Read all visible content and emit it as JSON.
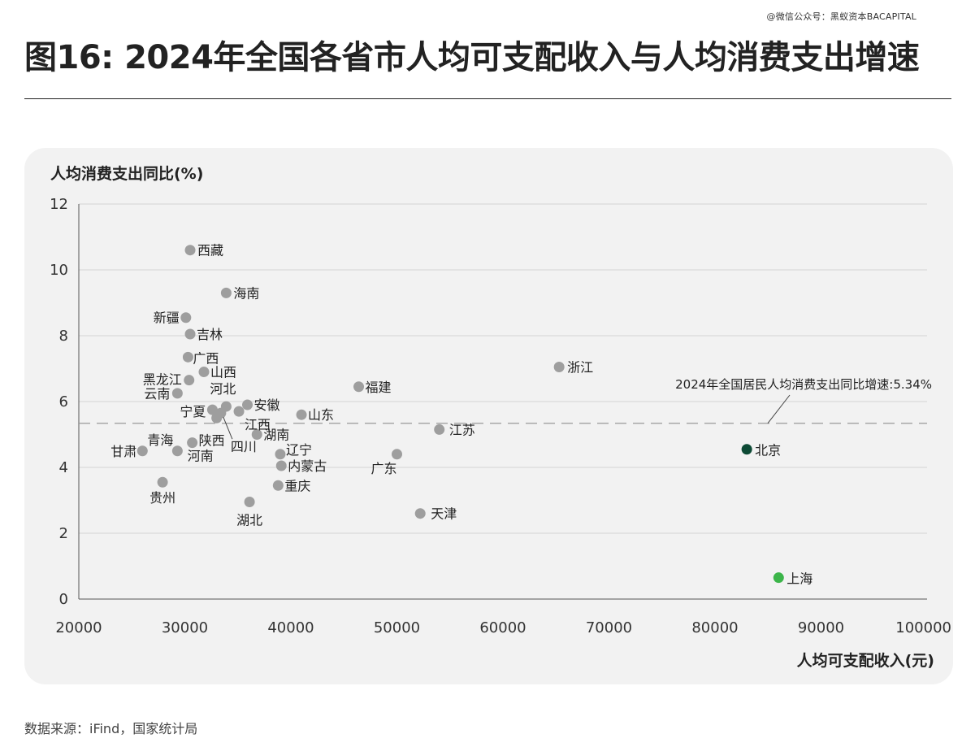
{
  "watermark": "@微信公众号：黑蚁资本BACAPITAL",
  "title": "图16: 2024年全国各省市人均可支配收入与人均消费支出增速",
  "source": "数据来源：iFind，国家统计局",
  "colors": {
    "default_point": "#9e9e9e",
    "beijing": "#0d4a35",
    "shanghai": "#3cb54a",
    "grid": "#d4d4d4",
    "axis": "#555555",
    "ref_line": "#999999"
  },
  "chart_data": {
    "type": "scatter",
    "title": "",
    "xlabel": "人均可支配收入(元)",
    "ylabel": "人均消费支出同比(%)",
    "xlim": [
      20000,
      100000
    ],
    "ylim": [
      0,
      12
    ],
    "xticks": [
      20000,
      30000,
      40000,
      50000,
      60000,
      70000,
      80000,
      90000,
      100000
    ],
    "yticks": [
      0,
      2,
      4,
      6,
      8,
      10,
      12
    ],
    "grid": "horizontal",
    "reference_line": {
      "y": 5.34,
      "label": "2024年全国居民人均消费支出同比增速:5.34%"
    },
    "points": [
      {
        "name": "西藏",
        "x": 30500,
        "y": 10.6,
        "color": "default"
      },
      {
        "name": "海南",
        "x": 33900,
        "y": 9.3,
        "color": "default"
      },
      {
        "name": "新疆",
        "x": 30100,
        "y": 8.55,
        "color": "default"
      },
      {
        "name": "吉林",
        "x": 30500,
        "y": 8.05,
        "color": "default"
      },
      {
        "name": "广西",
        "x": 30300,
        "y": 7.35,
        "color": "default"
      },
      {
        "name": "山西",
        "x": 31800,
        "y": 6.9,
        "color": "default"
      },
      {
        "name": "黑龙江",
        "x": 30400,
        "y": 6.65,
        "color": "default"
      },
      {
        "name": "云南",
        "x": 29300,
        "y": 6.25,
        "color": "default"
      },
      {
        "name": "河北",
        "x": 33900,
        "y": 5.85,
        "color": "default"
      },
      {
        "name": "安徽",
        "x": 35900,
        "y": 5.9,
        "color": "default"
      },
      {
        "name": "宁夏",
        "x": 32600,
        "y": 5.75,
        "color": "default"
      },
      {
        "name": "江西",
        "x": 35100,
        "y": 5.7,
        "color": "default"
      },
      {
        "name": "四川",
        "x": 33400,
        "y": 5.65,
        "color": "default"
      },
      {
        "name": "陕西",
        "x": 33000,
        "y": 5.5,
        "color": "default"
      },
      {
        "name": "山东",
        "x": 41000,
        "y": 5.6,
        "color": "default"
      },
      {
        "name": "湖南",
        "x": 36800,
        "y": 5.0,
        "color": "default"
      },
      {
        "name": "河南",
        "x": 30700,
        "y": 4.75,
        "color": "default"
      },
      {
        "name": "青海",
        "x": 29300,
        "y": 4.5,
        "color": "default"
      },
      {
        "name": "甘肃",
        "x": 26000,
        "y": 4.5,
        "color": "default"
      },
      {
        "name": "辽宁",
        "x": 39000,
        "y": 4.4,
        "color": "default"
      },
      {
        "name": "内蒙古",
        "x": 39100,
        "y": 4.05,
        "color": "default"
      },
      {
        "name": "贵州",
        "x": 27900,
        "y": 3.55,
        "color": "default"
      },
      {
        "name": "重庆",
        "x": 38800,
        "y": 3.45,
        "color": "default"
      },
      {
        "name": "湖北",
        "x": 36100,
        "y": 2.95,
        "color": "default"
      },
      {
        "name": "福建",
        "x": 46400,
        "y": 6.45,
        "color": "default"
      },
      {
        "name": "浙江",
        "x": 65300,
        "y": 7.05,
        "color": "default"
      },
      {
        "name": "江苏",
        "x": 54000,
        "y": 5.15,
        "color": "default"
      },
      {
        "name": "广东",
        "x": 50000,
        "y": 4.4,
        "color": "default"
      },
      {
        "name": "天津",
        "x": 52200,
        "y": 2.6,
        "color": "default"
      },
      {
        "name": "北京",
        "x": 83000,
        "y": 4.55,
        "color": "beijing"
      },
      {
        "name": "上海",
        "x": 86000,
        "y": 0.65,
        "color": "shanghai"
      }
    ]
  }
}
